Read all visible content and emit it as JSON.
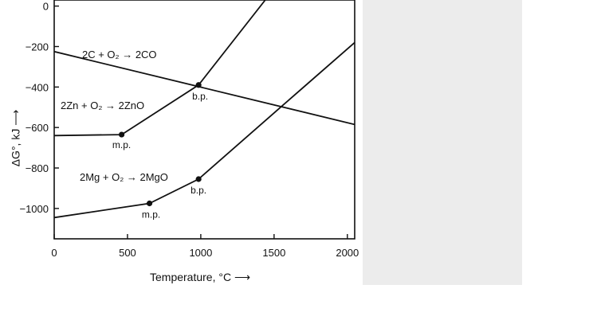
{
  "chart_data": {
    "type": "line",
    "title": "",
    "xlabel": "Temperature, °C",
    "ylabel": "ΔG°, kJ",
    "xlim": [
      0,
      2050
    ],
    "ylim": [
      -1150,
      30
    ],
    "x_ticks": [
      0,
      500,
      1000,
      1500,
      2000
    ],
    "y_ticks": [
      0,
      -200,
      -400,
      -600,
      -800,
      -1000
    ],
    "grid": false,
    "series": [
      {
        "name": "2C + O₂ → 2CO",
        "x": [
          0,
          2050
        ],
        "y": [
          -225,
          -585
        ]
      },
      {
        "name": "2Zn + O₂ → 2ZnO",
        "x": [
          0,
          460,
          985,
          1440
        ],
        "y": [
          -640,
          -635,
          -390,
          30
        ]
      },
      {
        "name": "2Mg + O₂ → 2MgO",
        "x": [
          0,
          650,
          985,
          1560,
          2050
        ],
        "y": [
          -1045,
          -975,
          -855,
          -490,
          -180
        ]
      }
    ],
    "markers": [
      {
        "x": 460,
        "y": -635,
        "label": "m.p."
      },
      {
        "x": 985,
        "y": -390,
        "label": "b.p."
      },
      {
        "x": 650,
        "y": -975,
        "label": "m.p."
      },
      {
        "x": 985,
        "y": -855,
        "label": "b.p."
      }
    ]
  }
}
